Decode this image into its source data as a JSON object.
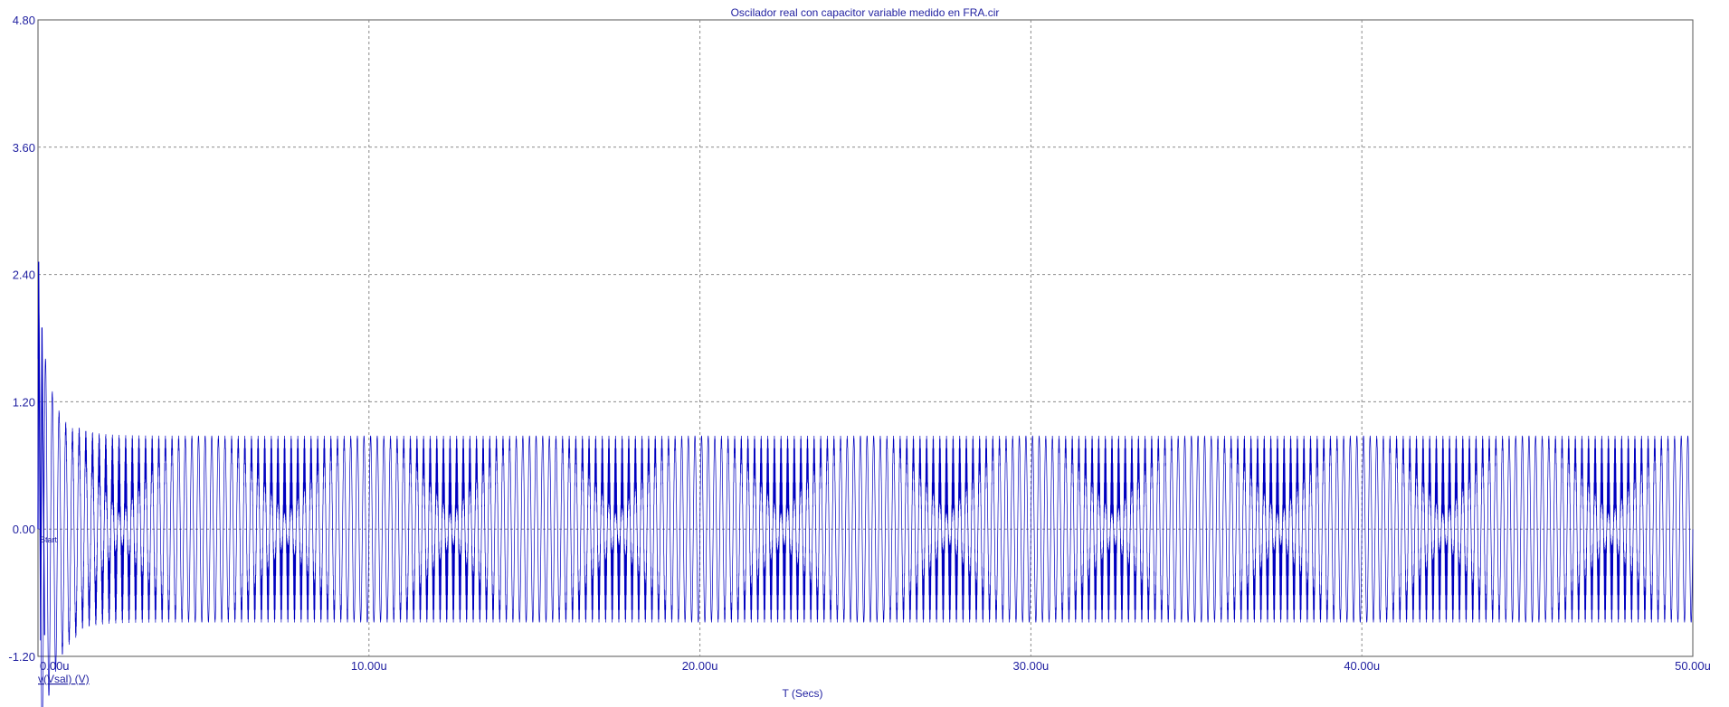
{
  "window": {
    "title": "Oscilador real con capacitor variable medido en FRA.cir"
  },
  "colors": {
    "trace": "#0000c0",
    "text": "#1f1fa0",
    "grid": "#8a8a8a",
    "frame": "#555555"
  },
  "chart_data": {
    "type": "line",
    "title": "Oscilador real con capacitor variable medido en FRA.cir",
    "xlabel": "T (Secs)",
    "ylabel": "",
    "xlim": [
      0,
      50
    ],
    "ylim": [
      -1.2,
      4.8
    ],
    "x_unit": "us",
    "x_tick_labels": [
      "0.00u",
      "10.00u",
      "20.00u",
      "30.00u",
      "40.00u",
      "50.00u"
    ],
    "x_ticks": [
      0,
      10,
      20,
      30,
      40,
      50
    ],
    "y_tick_labels": [
      "4.80",
      "3.60",
      "2.40",
      "1.20",
      "0.00",
      "-1.20"
    ],
    "y_ticks": [
      4.8,
      3.6,
      2.4,
      1.2,
      0.0,
      -1.2
    ],
    "grid": true,
    "series": [
      {
        "name": "v(Vsal) (V)",
        "description_points": {
          "initial_peak": 2.52,
          "initial_min": -1.05,
          "steady_max": 0.88,
          "steady_min": -0.88,
          "beat_period_us": 5.0,
          "carrier_period_us": 0.2
        }
      }
    ],
    "cursor_label": "Start"
  }
}
